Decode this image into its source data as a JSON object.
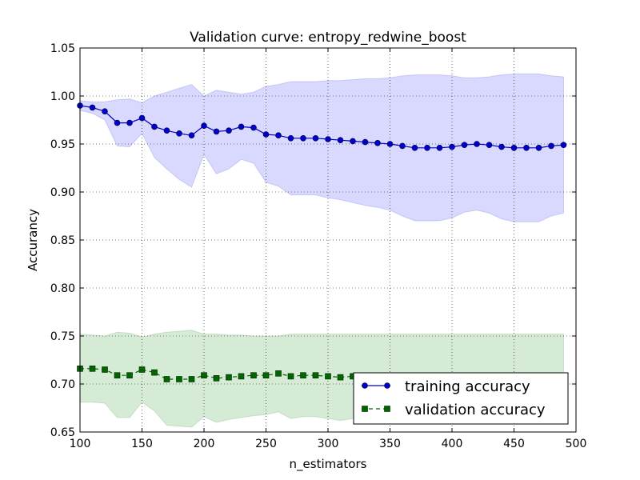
{
  "chart_data": {
    "type": "line",
    "title": "Validation curve: entropy_redwine_boost",
    "xlabel": "n_estimators",
    "ylabel": "Accurancy",
    "xlim": [
      100,
      500
    ],
    "ylim": [
      0.65,
      1.05
    ],
    "x_ticks": [
      "100",
      "150",
      "200",
      "250",
      "300",
      "350",
      "400",
      "450",
      "500"
    ],
    "y_ticks": [
      "0.65",
      "0.70",
      "0.75",
      "0.80",
      "0.85",
      "0.90",
      "0.95",
      "1.00",
      "1.05"
    ],
    "grid": true,
    "legend_position": "bottom-right",
    "x": [
      100,
      110,
      120,
      130,
      140,
      150,
      160,
      170,
      180,
      190,
      200,
      210,
      220,
      230,
      240,
      250,
      260,
      270,
      280,
      290,
      300,
      310,
      320,
      330,
      340,
      350,
      360,
      370,
      380,
      390,
      400,
      410,
      420,
      430,
      440,
      450,
      460,
      470,
      480,
      490
    ],
    "series": [
      {
        "name": "training accuracy",
        "color": "#0000cc",
        "band_color": "#ccccff",
        "marker": "circle",
        "line_style": "solid",
        "values": [
          0.99,
          0.988,
          0.984,
          0.972,
          0.972,
          0.977,
          0.968,
          0.964,
          0.961,
          0.959,
          0.969,
          0.963,
          0.964,
          0.968,
          0.967,
          0.96,
          0.959,
          0.956,
          0.956,
          0.956,
          0.955,
          0.954,
          0.953,
          0.952,
          0.951,
          0.95,
          0.948,
          0.946,
          0.946,
          0.946,
          0.947,
          0.949,
          0.95,
          0.949,
          0.947,
          0.946,
          0.946,
          0.946,
          0.948,
          0.949
        ],
        "upper": [
          0.995,
          0.994,
          0.994,
          0.996,
          0.997,
          0.993,
          1.0,
          1.004,
          1.008,
          1.012,
          1.0,
          1.006,
          1.004,
          1.002,
          1.004,
          1.01,
          1.012,
          1.015,
          1.015,
          1.015,
          1.016,
          1.016,
          1.017,
          1.018,
          1.018,
          1.019,
          1.021,
          1.022,
          1.022,
          1.022,
          1.021,
          1.019,
          1.019,
          1.02,
          1.022,
          1.023,
          1.023,
          1.023,
          1.021,
          1.02
        ],
        "lower": [
          0.985,
          0.982,
          0.975,
          0.948,
          0.947,
          0.961,
          0.936,
          0.924,
          0.913,
          0.905,
          0.939,
          0.919,
          0.924,
          0.934,
          0.93,
          0.91,
          0.906,
          0.897,
          0.897,
          0.897,
          0.894,
          0.892,
          0.889,
          0.886,
          0.884,
          0.881,
          0.875,
          0.87,
          0.87,
          0.87,
          0.873,
          0.879,
          0.881,
          0.878,
          0.872,
          0.869,
          0.869,
          0.869,
          0.875,
          0.878
        ]
      },
      {
        "name": "validation accuracy",
        "color": "#006600",
        "band_color": "#cce6cc",
        "marker": "square",
        "line_style": "dashed",
        "values": [
          0.716,
          0.716,
          0.715,
          0.709,
          0.709,
          0.715,
          0.712,
          0.705,
          0.705,
          0.705,
          0.709,
          0.706,
          0.707,
          0.708,
          0.709,
          0.709,
          0.711,
          0.708,
          0.709,
          0.709,
          0.708,
          0.707,
          0.708,
          0.708,
          0.708,
          0.708,
          0.708,
          0.708,
          0.708,
          0.708,
          0.708,
          0.708,
          0.708,
          0.708,
          0.708,
          0.708,
          0.708,
          0.708,
          0.708,
          0.708
        ],
        "upper": [
          0.752,
          0.751,
          0.75,
          0.754,
          0.753,
          0.749,
          0.752,
          0.754,
          0.755,
          0.756,
          0.752,
          0.752,
          0.751,
          0.751,
          0.75,
          0.75,
          0.75,
          0.752,
          0.752,
          0.752,
          0.752,
          0.752,
          0.752,
          0.752,
          0.752,
          0.752,
          0.752,
          0.752,
          0.752,
          0.752,
          0.752,
          0.752,
          0.752,
          0.752,
          0.752,
          0.752,
          0.752,
          0.752,
          0.752,
          0.752
        ],
        "lower": [
          0.681,
          0.681,
          0.68,
          0.665,
          0.665,
          0.681,
          0.672,
          0.657,
          0.656,
          0.655,
          0.666,
          0.66,
          0.663,
          0.665,
          0.667,
          0.668,
          0.671,
          0.664,
          0.666,
          0.666,
          0.664,
          0.662,
          0.664,
          0.664,
          0.664,
          0.664,
          0.664,
          0.664,
          0.664,
          0.664,
          0.664,
          0.664,
          0.664,
          0.664,
          0.664,
          0.664,
          0.664,
          0.664,
          0.664,
          0.664
        ]
      }
    ]
  }
}
